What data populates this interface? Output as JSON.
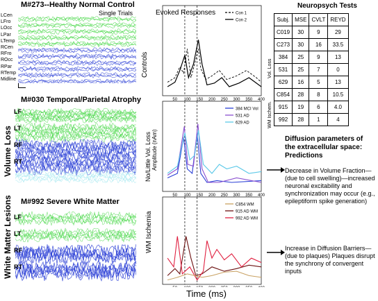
{
  "panels": {
    "top_left": {
      "title": "M#273--Healthy Normal Control",
      "trial_label": "Single Trials",
      "channels": [
        "LCen",
        "LFro",
        "LOcc",
        "LPar",
        "LTemp",
        "RCen",
        "RFro",
        "ROcc",
        "RPar",
        "RTemp",
        "Midline"
      ]
    },
    "mid_left": {
      "title": "M#030 Temporal/Parietal Atrophy",
      "side_label": "Volume Loss",
      "channels": [
        "LF",
        "LT",
        "RF",
        "RT"
      ]
    },
    "bot_left": {
      "title": "M#992 Severe White Matter",
      "side_label": "White Matter Lesions",
      "channels": [
        "LF",
        "LT",
        "RF",
        "RT"
      ]
    }
  },
  "evoked": {
    "title": "Evoked Responses",
    "xlabel": "Time (ms)",
    "ylabel_mid": "Amplitude (nAm)",
    "row_labels": [
      "Controls",
      "No/Little Vol. Loss",
      "WM Ischemia"
    ],
    "x_ticks": [
      "50",
      "100",
      "150",
      "200",
      "250",
      "300",
      "350",
      "400"
    ],
    "legend_top": [
      "Con 1",
      "Con 2"
    ],
    "legend_mid": [
      "384 MCI Vol",
      "531 AD",
      "629 AD"
    ],
    "legend_bot": [
      "C854 WM",
      "915 AD WM",
      "992 AD WM"
    ]
  },
  "table": {
    "title": "Neuropsych Tests",
    "headers": [
      "Subj.",
      "MSE",
      "CVLT",
      "REYD"
    ],
    "rows": [
      [
        "C019",
        "30",
        "9",
        "29"
      ],
      [
        "C273",
        "30",
        "16",
        "33.5"
      ],
      [
        "384",
        "25",
        "9",
        "13"
      ],
      [
        "531",
        "25",
        "7",
        "0"
      ],
      [
        "629",
        "16",
        "5",
        "13"
      ],
      [
        "C854",
        "28",
        "8",
        "10.5"
      ],
      [
        "915",
        "19",
        "6",
        "4.0"
      ],
      [
        "992",
        "28",
        "1",
        "4"
      ]
    ],
    "group_labels": [
      "Vol. Loss",
      "WM Ischem."
    ]
  },
  "diffusion": {
    "title": "Diffusion parameters of the extracellular space: Predictions",
    "note1": "Decrease in Volume Fraction—(due to cell swelling)—increased neuronal excitability and synchronization may occur (e.g., epileptiform spike generation)",
    "note2": "Increase in Diffusion Barriers—(due to plaques) Plaques disrupt the synchrony of convergent inputs"
  },
  "colors": {
    "green": "#3ed63e",
    "blue": "#2a3fd6",
    "light": "#a8e8f0",
    "red": "#e02040",
    "darkred": "#6b1010",
    "tan": "#c8a060"
  }
}
